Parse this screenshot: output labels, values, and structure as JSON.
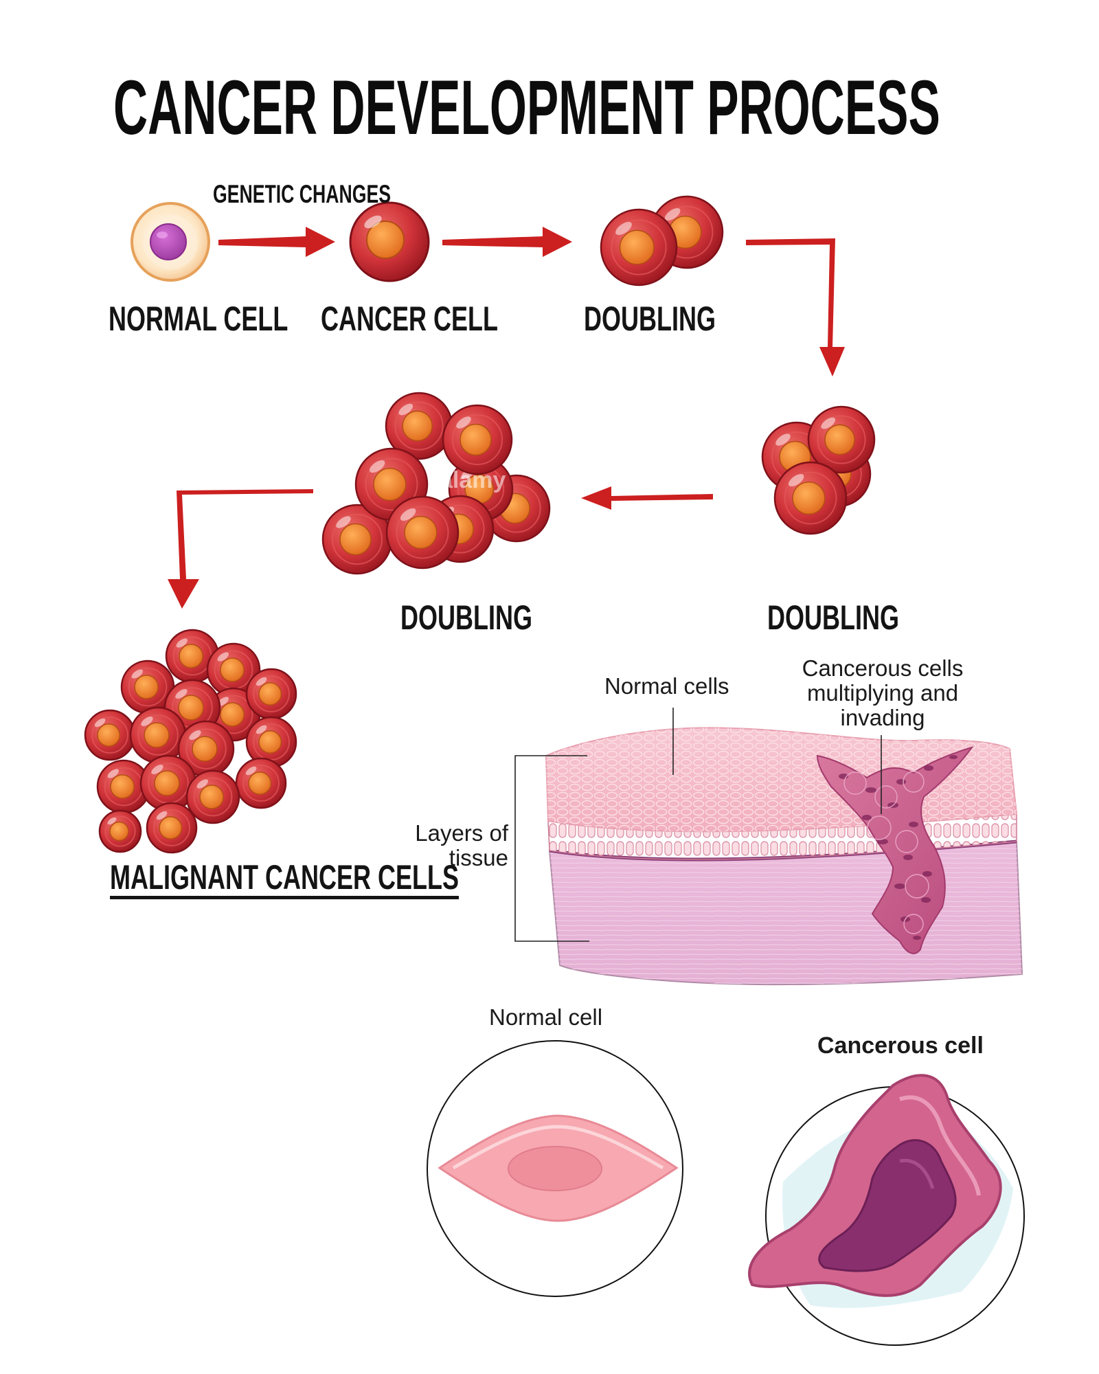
{
  "title": "CANCER DEVELOPMENT PROCESS",
  "process": {
    "annotation": "GENETIC CHANGES",
    "stages": {
      "normal_cell": "NORMAL CELL",
      "cancer_cell": "CANCER CELL",
      "doubling_1": "DOUBLING",
      "doubling_2": "DOUBLING",
      "doubling_3": "DOUBLING",
      "malignant": "MALIGNANT CANCER CELLS"
    }
  },
  "tissue": {
    "normal_cells": "Normal cells",
    "cancerous_cells": "Cancerous cells multiplying and invading",
    "layers": "Layers of tissue"
  },
  "comparison": {
    "normal_cell": "Normal cell",
    "cancerous_cell": "Cancerous cell"
  },
  "watermark": "alamy",
  "colors": {
    "cancer_cell_red": "#cf2c33",
    "cancer_nucleus_orange": "#f07b2a",
    "arrow_red": "#cc1f1f",
    "tissue_pink": "#f4b8c4",
    "tissue_lavender": "#e8b8d8",
    "invading_cells": "#c85a90",
    "normal_cell_pink": "#f7a8b0",
    "cancerous_cell_purple": "#8a2f6e"
  }
}
